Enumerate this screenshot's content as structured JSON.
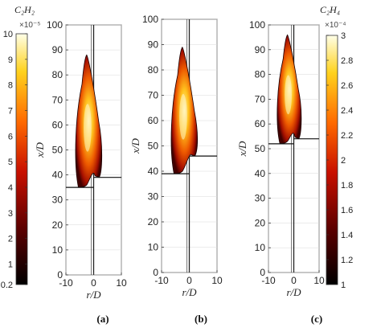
{
  "chart_data": [
    {
      "type": "heatmap",
      "panel_label": "(a)",
      "xlabel": "r/D",
      "ylabel": "x/D",
      "xlim": [
        -10,
        10
      ],
      "ylim": [
        0,
        100
      ],
      "xticks": [
        -10,
        0,
        10
      ],
      "yticks": [
        0,
        10,
        20,
        30,
        40,
        50,
        60,
        70,
        80,
        90,
        100
      ],
      "lift_off_left": 35,
      "lift_off_right": 39,
      "flame_tip": 88,
      "colorbar": {
        "title": "C₂H₂",
        "multiplier": "×10⁻⁵",
        "range": [
          0.2,
          10
        ],
        "ticks": [
          0.2,
          1,
          2,
          3,
          4,
          5,
          6,
          7,
          8,
          9,
          10
        ]
      }
    },
    {
      "type": "heatmap",
      "panel_label": "(b)",
      "xlabel": "r/D",
      "ylabel": "x/D",
      "xlim": [
        -10,
        10
      ],
      "ylim": [
        0,
        100
      ],
      "xticks": [
        -10,
        0,
        10
      ],
      "yticks": [
        0,
        10,
        20,
        30,
        40,
        50,
        60,
        70,
        80,
        90,
        100
      ],
      "lift_off_left": 39,
      "lift_off_right": 46,
      "flame_tip": 89
    },
    {
      "type": "heatmap",
      "panel_label": "(c)",
      "xlabel": "r/D",
      "ylabel": "x/D",
      "xlim": [
        -10,
        10
      ],
      "ylim": [
        0,
        100
      ],
      "xticks": [
        -10,
        0,
        10
      ],
      "yticks": [
        0,
        10,
        20,
        30,
        40,
        50,
        60,
        70,
        80,
        90,
        100
      ],
      "lift_off_left": 52,
      "lift_off_right": 54,
      "flame_tip": 96,
      "colorbar": {
        "title": "C₂H₄",
        "multiplier": "×10⁻⁴",
        "range": [
          1,
          3
        ],
        "ticks": [
          1,
          1.2,
          1.4,
          1.6,
          1.8,
          2,
          2.2,
          2.4,
          2.6,
          2.8,
          3
        ]
      }
    }
  ]
}
